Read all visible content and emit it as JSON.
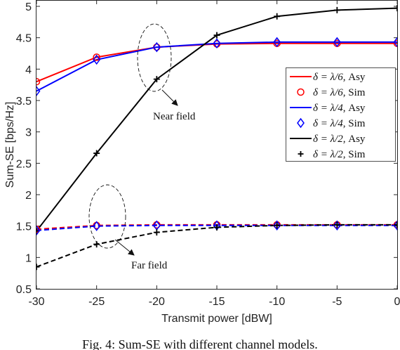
{
  "chart_data": {
    "type": "line",
    "xlabel": "Transmit power [dBW]",
    "ylabel": "Sum-SE [bps/Hz]",
    "xlim": [
      -30,
      0
    ],
    "ylim": [
      0.5,
      5
    ],
    "xticks": [
      -30,
      -25,
      -20,
      -15,
      -10,
      -5,
      0
    ],
    "xtick_labels": [
      "-30",
      "-25",
      "-20",
      "-15",
      "-10",
      "-5",
      "0"
    ],
    "yticks": [
      0.5,
      1,
      1.5,
      2,
      2.5,
      3,
      3.5,
      4,
      4.5,
      5
    ],
    "ytick_labels": [
      "0.5",
      "1",
      "1.5",
      "2",
      "2.5",
      "3",
      "3.5",
      "4",
      "4.5",
      "5"
    ],
    "grid": false,
    "legend_position": "right",
    "x": [
      -30,
      -25,
      -20,
      -15,
      -10,
      -5,
      0
    ],
    "series": [
      {
        "name": "δ = λ/6, Asy",
        "field": "near",
        "color": "#ff0000",
        "style": "solid",
        "values": [
          3.8,
          4.19,
          4.35,
          4.4,
          4.41,
          4.41,
          4.41
        ]
      },
      {
        "name": "δ = λ/6, Sim",
        "field": "near",
        "color": "#ff0000",
        "marker": "circle",
        "values": [
          3.8,
          4.19,
          4.35,
          4.4,
          4.41,
          4.41,
          4.41
        ]
      },
      {
        "name": "δ = λ/4, Asy",
        "field": "near",
        "color": "#0000ff",
        "style": "solid",
        "values": [
          3.65,
          4.15,
          4.35,
          4.41,
          4.43,
          4.43,
          4.43
        ]
      },
      {
        "name": "δ = λ/4, Sim",
        "field": "near",
        "color": "#0000ff",
        "marker": "diamond",
        "values": [
          3.65,
          4.15,
          4.35,
          4.41,
          4.43,
          4.43,
          4.43
        ]
      },
      {
        "name": "δ = λ/2, Asy",
        "field": "near",
        "color": "#000000",
        "style": "solid",
        "values": [
          1.42,
          2.66,
          3.84,
          4.54,
          4.84,
          4.94,
          4.97
        ]
      },
      {
        "name": "δ = λ/2, Sim",
        "field": "near",
        "color": "#000000",
        "marker": "plus",
        "values": [
          1.42,
          2.66,
          3.84,
          4.54,
          4.84,
          4.94,
          4.97
        ]
      },
      {
        "field": "far",
        "color": "#ff0000",
        "style": "dashed",
        "marker": "circle",
        "values": [
          1.45,
          1.51,
          1.52,
          1.52,
          1.52,
          1.52,
          1.52
        ]
      },
      {
        "field": "far",
        "color": "#0000ff",
        "style": "dashed",
        "marker": "diamond",
        "values": [
          1.43,
          1.5,
          1.51,
          1.51,
          1.51,
          1.51,
          1.51
        ]
      },
      {
        "field": "far",
        "color": "#000000",
        "style": "dashed",
        "marker": "plus",
        "values": [
          0.85,
          1.21,
          1.4,
          1.48,
          1.51,
          1.52,
          1.52
        ]
      }
    ],
    "annotations": [
      {
        "text": "Near field",
        "points_to": "near-field ellipse at -20 dBW"
      },
      {
        "text": "Far field",
        "points_to": "far-field ellipse at -25 dBW"
      }
    ]
  },
  "legend": [
    {
      "math": "δ = λ/6",
      "suffix": ", Asy"
    },
    {
      "math": "δ = λ/6",
      "suffix": ", Sim"
    },
    {
      "math": "δ = λ/4",
      "suffix": ", Asy"
    },
    {
      "math": "δ = λ/4",
      "suffix": ", Sim"
    },
    {
      "math": "δ = λ/2",
      "suffix": ", Asy"
    },
    {
      "math": "δ = λ/2",
      "suffix": ", Sim"
    }
  ],
  "annotations": {
    "near": "Near field",
    "far": "Far field"
  },
  "caption": "Fig. 4: Sum-SE with different channel models."
}
